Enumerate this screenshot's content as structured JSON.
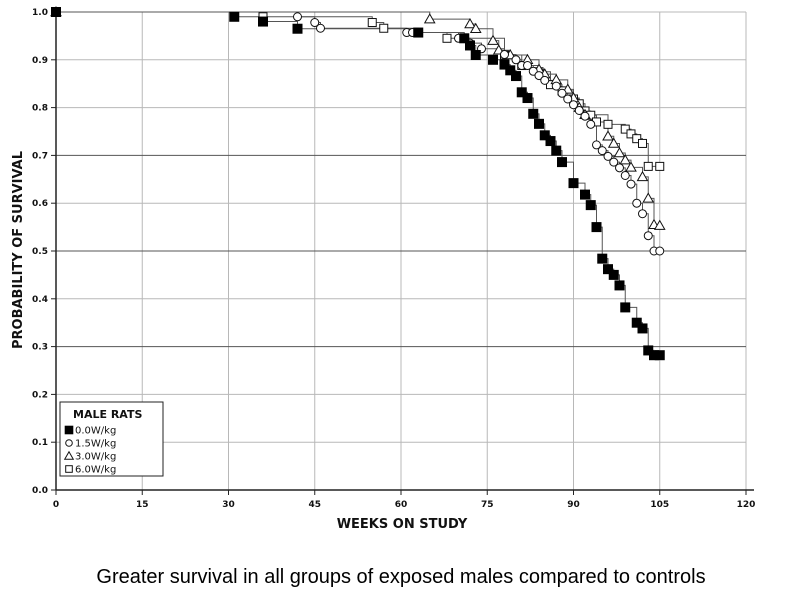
{
  "caption": "Greater survival in all groups of exposed males compared to controls",
  "chart_data": {
    "type": "line",
    "subtype": "kaplan-meier step",
    "xlabel": "WEEKS ON STUDY",
    "ylabel": "PROBABILITY OF SURVIVAL",
    "xlim": [
      0,
      120
    ],
    "ylim": [
      0,
      1.0
    ],
    "x_ticks": [
      0,
      15,
      30,
      45,
      60,
      75,
      90,
      105,
      120
    ],
    "y_ticks": [
      "0.0",
      "0.1",
      "0.2",
      "0.3",
      "0.4",
      "0.5",
      "0.6",
      "0.7",
      "0.8",
      "0.9",
      "1.0"
    ],
    "grid": true,
    "legend": {
      "title": "MALE RATS",
      "position": "bottom-left"
    },
    "series": [
      {
        "name": "0.0W/kg",
        "marker": "filled-square",
        "points": [
          [
            0,
            1.0
          ],
          [
            31,
            0.99
          ],
          [
            36,
            0.98
          ],
          [
            42,
            0.965
          ],
          [
            63,
            0.957
          ],
          [
            71,
            0.945
          ],
          [
            72,
            0.93
          ],
          [
            73,
            0.91
          ],
          [
            76,
            0.9
          ],
          [
            78,
            0.89
          ],
          [
            79,
            0.878
          ],
          [
            80,
            0.866
          ],
          [
            81,
            0.832
          ],
          [
            82,
            0.82
          ],
          [
            83,
            0.787
          ],
          [
            84,
            0.766
          ],
          [
            85,
            0.742
          ],
          [
            86,
            0.73
          ],
          [
            87,
            0.71
          ],
          [
            88,
            0.686
          ],
          [
            90,
            0.642
          ],
          [
            92,
            0.618
          ],
          [
            93,
            0.596
          ],
          [
            94,
            0.55
          ],
          [
            95,
            0.484
          ],
          [
            96,
            0.462
          ],
          [
            97,
            0.45
          ],
          [
            98,
            0.428
          ],
          [
            99,
            0.382
          ],
          [
            101,
            0.35
          ],
          [
            102,
            0.338
          ],
          [
            103,
            0.292
          ],
          [
            104,
            0.282
          ],
          [
            105,
            0.282
          ]
        ]
      },
      {
        "name": "1.5W/kg",
        "marker": "circle",
        "points": [
          [
            0,
            1.0
          ],
          [
            42,
            0.99
          ],
          [
            45,
            0.978
          ],
          [
            46,
            0.966
          ],
          [
            61,
            0.957
          ],
          [
            62,
            0.957
          ],
          [
            70,
            0.945
          ],
          [
            71,
            0.945
          ],
          [
            72,
            0.935
          ],
          [
            74,
            0.923
          ],
          [
            78,
            0.911
          ],
          [
            80,
            0.9
          ],
          [
            81,
            0.888
          ],
          [
            82,
            0.888
          ],
          [
            83,
            0.876
          ],
          [
            84,
            0.867
          ],
          [
            85,
            0.857
          ],
          [
            87,
            0.845
          ],
          [
            88,
            0.83
          ],
          [
            89,
            0.818
          ],
          [
            90,
            0.806
          ],
          [
            91,
            0.794
          ],
          [
            92,
            0.782
          ],
          [
            93,
            0.765
          ],
          [
            94,
            0.722
          ],
          [
            95,
            0.71
          ],
          [
            96,
            0.698
          ],
          [
            97,
            0.686
          ],
          [
            98,
            0.674
          ],
          [
            99,
            0.658
          ],
          [
            100,
            0.64
          ],
          [
            101,
            0.6
          ],
          [
            102,
            0.578
          ],
          [
            103,
            0.532
          ],
          [
            104,
            0.5
          ],
          [
            105,
            0.5
          ]
        ]
      },
      {
        "name": "3.0W/kg",
        "marker": "triangle",
        "points": [
          [
            0,
            1.0
          ],
          [
            65,
            0.985
          ],
          [
            72,
            0.975
          ],
          [
            73,
            0.965
          ],
          [
            76,
            0.94
          ],
          [
            77,
            0.92
          ],
          [
            79,
            0.91
          ],
          [
            82,
            0.9
          ],
          [
            84,
            0.88
          ],
          [
            85,
            0.87
          ],
          [
            87,
            0.858
          ],
          [
            89,
            0.838
          ],
          [
            90,
            0.82
          ],
          [
            91,
            0.8
          ],
          [
            92,
            0.785
          ],
          [
            96,
            0.74
          ],
          [
            97,
            0.725
          ],
          [
            98,
            0.705
          ],
          [
            99,
            0.69
          ],
          [
            100,
            0.675
          ],
          [
            102,
            0.655
          ],
          [
            103,
            0.61
          ],
          [
            104,
            0.555
          ],
          [
            105,
            0.553
          ]
        ]
      },
      {
        "name": "6.0W/kg",
        "marker": "square",
        "points": [
          [
            0,
            1.0
          ],
          [
            36,
            0.99
          ],
          [
            55,
            0.978
          ],
          [
            57,
            0.966
          ],
          [
            63,
            0.957
          ],
          [
            68,
            0.945
          ],
          [
            78,
            0.91
          ],
          [
            81,
            0.888
          ],
          [
            84,
            0.875
          ],
          [
            86,
            0.848
          ],
          [
            88,
            0.835
          ],
          [
            90,
            0.818
          ],
          [
            91,
            0.808
          ],
          [
            92,
            0.793
          ],
          [
            93,
            0.784
          ],
          [
            94,
            0.77
          ],
          [
            96,
            0.765
          ],
          [
            99,
            0.755
          ],
          [
            100,
            0.745
          ],
          [
            101,
            0.735
          ],
          [
            102,
            0.725
          ],
          [
            103,
            0.677
          ],
          [
            105,
            0.677
          ]
        ]
      }
    ]
  }
}
